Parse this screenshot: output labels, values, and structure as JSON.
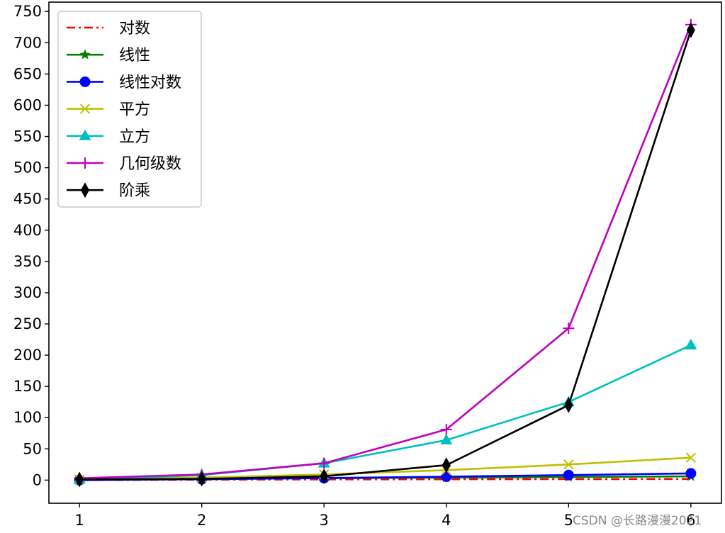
{
  "chart_data": {
    "type": "line",
    "title": "",
    "xlabel": "",
    "ylabel": "",
    "x": [
      1,
      2,
      3,
      4,
      5,
      6
    ],
    "xlim": [
      0.75,
      6.25
    ],
    "ylim": [
      -37,
      765
    ],
    "x_ticks": [
      1,
      2,
      3,
      4,
      5,
      6
    ],
    "y_ticks": [
      0,
      50,
      100,
      150,
      200,
      250,
      300,
      350,
      400,
      450,
      500,
      550,
      600,
      650,
      700,
      750
    ],
    "grid": false,
    "legend_position": "top-left",
    "series": [
      {
        "name": "对数",
        "color": "#ff0000",
        "line": "dashdot",
        "marker": "none",
        "values": [
          0,
          0.693,
          1.099,
          1.386,
          1.609,
          1.792
        ]
      },
      {
        "name": "线性",
        "color": "#008000",
        "line": "solid",
        "marker": "star",
        "values": [
          1,
          2,
          3,
          4,
          5,
          6
        ]
      },
      {
        "name": "线性对数",
        "color": "#0000ff",
        "line": "solid",
        "marker": "circle",
        "values": [
          0,
          1.386,
          3.296,
          5.545,
          8.047,
          10.751
        ]
      },
      {
        "name": "平方",
        "color": "#bfbf00",
        "line": "solid",
        "marker": "x",
        "values": [
          1,
          4,
          9,
          16,
          25,
          36
        ]
      },
      {
        "name": "立方",
        "color": "#00bfbf",
        "line": "solid",
        "marker": "triangle",
        "values": [
          1,
          8,
          27,
          64,
          125,
          216
        ]
      },
      {
        "name": "几何级数",
        "color": "#bf00bf",
        "line": "solid",
        "marker": "plus",
        "values": [
          3,
          9,
          27,
          81,
          243,
          729
        ]
      },
      {
        "name": "阶乘",
        "color": "#000000",
        "line": "solid",
        "marker": "diamond",
        "values": [
          1,
          2,
          6,
          24,
          120,
          720
        ]
      }
    ]
  },
  "watermark": "CSDN @长路漫漫2021"
}
